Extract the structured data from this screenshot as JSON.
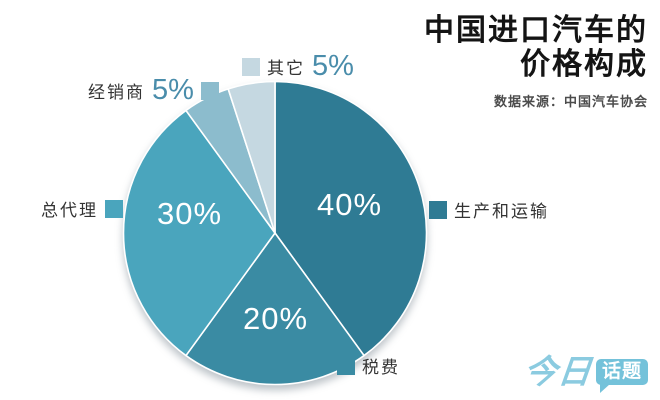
{
  "title": {
    "line1": "中国进口汽车的",
    "line2": "价格构成",
    "source": "数据来源：中国汽车协会"
  },
  "chart_data": {
    "type": "pie",
    "title": "中国进口汽车的价格构成",
    "source": "数据来源：中国汽车协会",
    "start_angle": "12-o'clock",
    "direction": "clockwise",
    "legend_position": "around",
    "slices": [
      {
        "id": "production",
        "name": "生产和运输",
        "value": 40,
        "label": "40%",
        "color": "#2f7b94"
      },
      {
        "id": "taxes",
        "name": "税费",
        "value": 20,
        "label": "20%",
        "color": "#3a8ba3"
      },
      {
        "id": "agent",
        "name": "总代理",
        "value": 30,
        "label": "30%",
        "color": "#4aa5bd"
      },
      {
        "id": "dealer",
        "name": "经销商",
        "value": 5,
        "label": "5%",
        "color": "#8cbccd"
      },
      {
        "id": "other",
        "name": "其它",
        "value": 5,
        "label": "5%",
        "color": "#c5d8e1"
      }
    ]
  },
  "logo": {
    "part1": "今日",
    "part2": "话题"
  },
  "colors": {
    "accent_text": "#4a8dab",
    "title_text": "#141414",
    "source_text": "#4c4c4c",
    "logo_blue": "#74c2da",
    "background": "#ffffff"
  }
}
